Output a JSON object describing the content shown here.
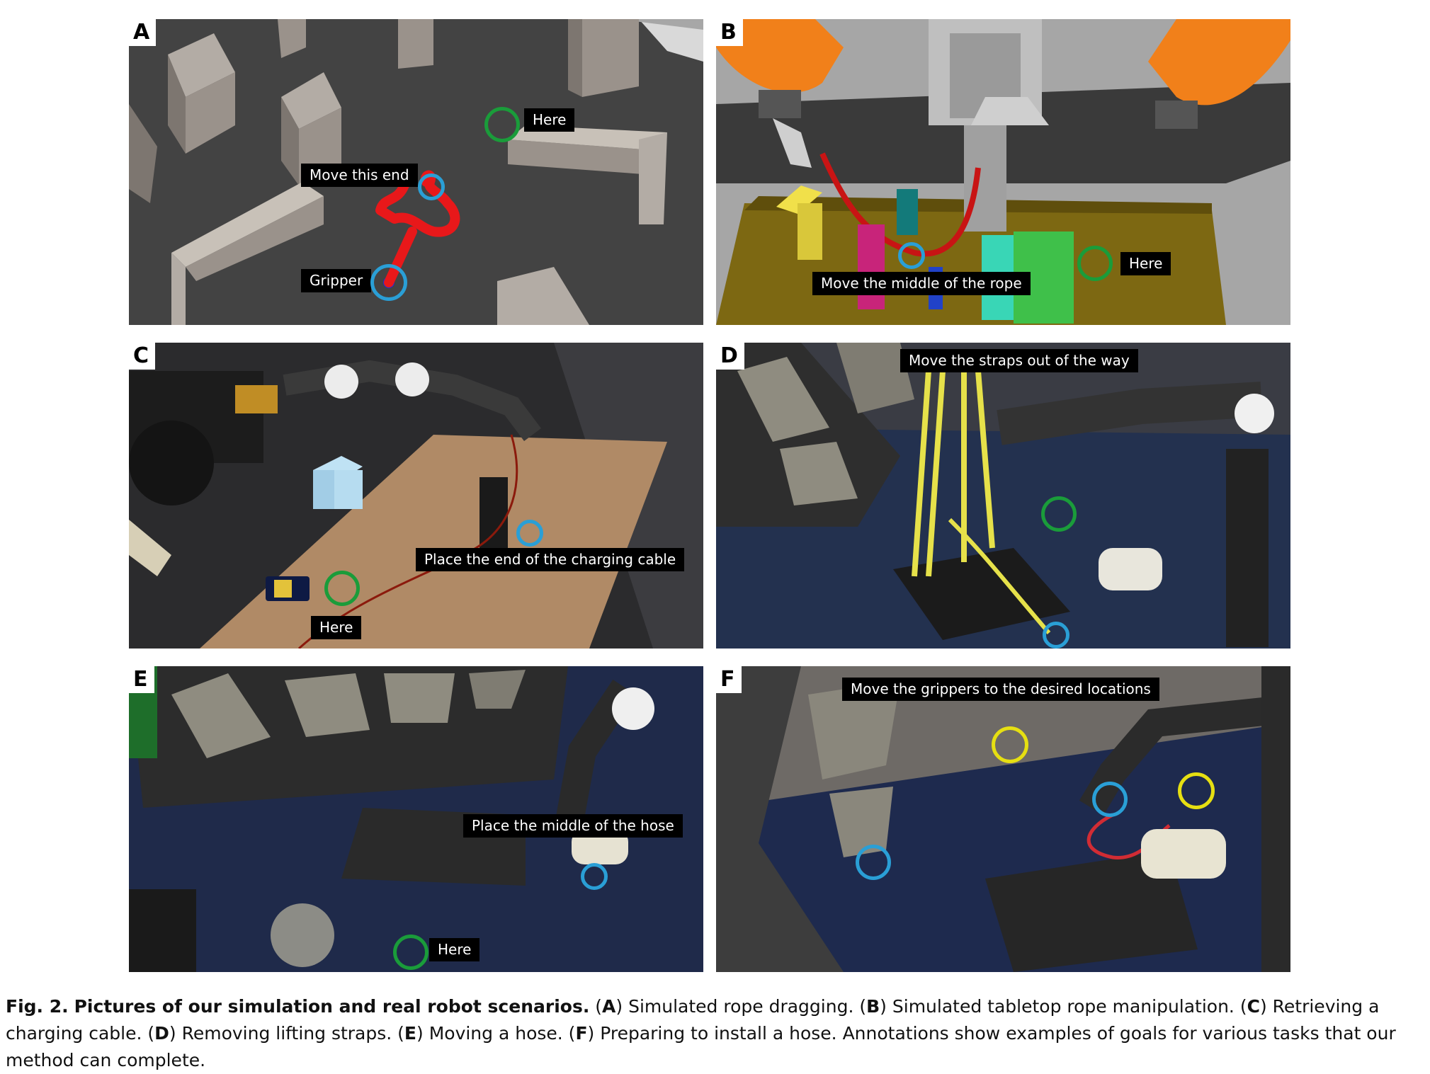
{
  "panels": [
    {
      "label": "A",
      "annotations": [
        "Move this end",
        "Gripper",
        "Here"
      ]
    },
    {
      "label": "B",
      "annotations": [
        "Move the middle of the rope",
        "Here"
      ]
    },
    {
      "label": "C",
      "annotations": [
        "Place the end of the charging cable",
        "Here"
      ]
    },
    {
      "label": "D",
      "annotations": [
        "Move the straps out of the way"
      ]
    },
    {
      "label": "E",
      "annotations": [
        "Place the middle of the hose",
        "Here"
      ]
    },
    {
      "label": "F",
      "annotations": [
        "Move the grippers to the desired locations"
      ]
    }
  ],
  "caption": {
    "fig": "Fig. 2.",
    "title": "Pictures of our simulation and real robot scenarios.",
    "parts": [
      {
        "letter": "A",
        "text": "Simulated rope dragging."
      },
      {
        "letter": "B",
        "text": "Simulated tabletop rope manipulation."
      },
      {
        "letter": "C",
        "text": "Retrieving a charging cable."
      },
      {
        "letter": "D",
        "text": "Removing lifting straps."
      },
      {
        "letter": "E",
        "text": "Moving a hose."
      },
      {
        "letter": "F",
        "text": "Preparing to install a hose."
      }
    ],
    "tail": "Annotations show examples of goals for various tasks that our method can complete."
  },
  "colors": {
    "goal_ring": "#1a9c3a",
    "gripper_ring": "#2a9fd6",
    "desired_ring": "#e6df12",
    "rope": "#e8181a"
  }
}
